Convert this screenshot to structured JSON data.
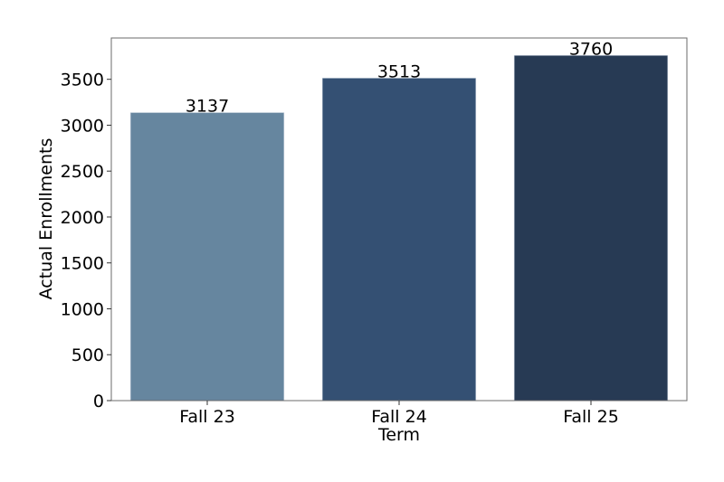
{
  "chart_data": {
    "type": "bar",
    "categories": [
      "Fall 23",
      "Fall 24",
      "Fall 25"
    ],
    "values": [
      3137,
      3513,
      3760
    ],
    "data_labels": [
      "3137",
      "3513",
      "3760"
    ],
    "colors": [
      "#66869f",
      "#345073",
      "#273a54"
    ],
    "title": "",
    "xlabel": "Term",
    "ylabel": "Actual Enrollments",
    "ylim": [
      0,
      3950
    ],
    "yticks": [
      0,
      500,
      1000,
      1500,
      2000,
      2500,
      3000,
      3500
    ],
    "ytick_labels": [
      "0",
      "500",
      "1000",
      "1500",
      "2000",
      "2500",
      "3000",
      "3500"
    ],
    "grid": false,
    "legend": "none"
  }
}
